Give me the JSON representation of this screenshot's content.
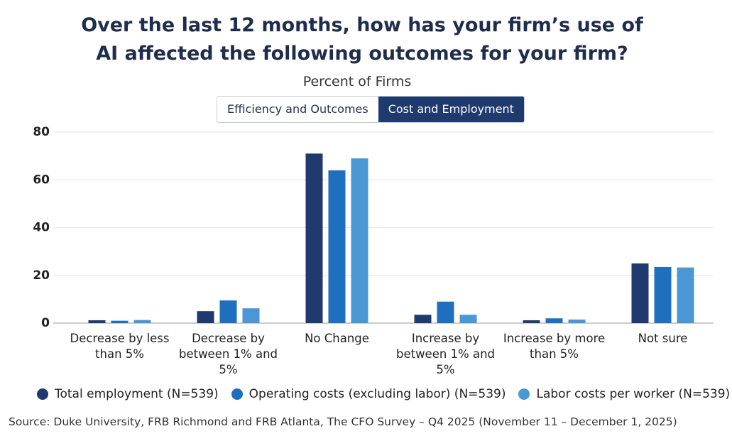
{
  "tabs": [
    "Efficiency and Outcomes",
    "Cost and Employment"
  ],
  "active_tab": 1,
  "chart_data": {
    "type": "bar",
    "title": "Over the last 12 months, how has your firm’s use of AI affected the following outcomes for your firm?",
    "subtitle": "Percent of Firms",
    "categories": [
      "Decrease by less than 5%",
      "Decrease by between 1% and 5%",
      "No Change",
      "Increase by between 1% and 5%",
      "Increase by more than 5%",
      "Not sure"
    ],
    "series": [
      {
        "name": "Total employment (N=539)",
        "color": "#1f3a6e",
        "values": [
          1.2,
          5,
          71,
          3.5,
          1.2,
          25
        ]
      },
      {
        "name": "Operating costs (excluding labor) (N=539)",
        "color": "#1f6fbf",
        "values": [
          1,
          9.5,
          64,
          9,
          2,
          23.5
        ]
      },
      {
        "name": "Labor costs per worker (N=539)",
        "color": "#4a97d6",
        "values": [
          1.3,
          6.2,
          69,
          3.5,
          1.5,
          23.3
        ]
      }
    ],
    "ylim": [
      0,
      80
    ],
    "yticks": [
      0,
      20,
      40,
      60,
      80
    ],
    "grid": true,
    "source": "Source: Duke University, FRB Richmond and FRB Atlanta, The CFO Survey – Q4 2025 (November 11 – December 1, 2025)"
  }
}
